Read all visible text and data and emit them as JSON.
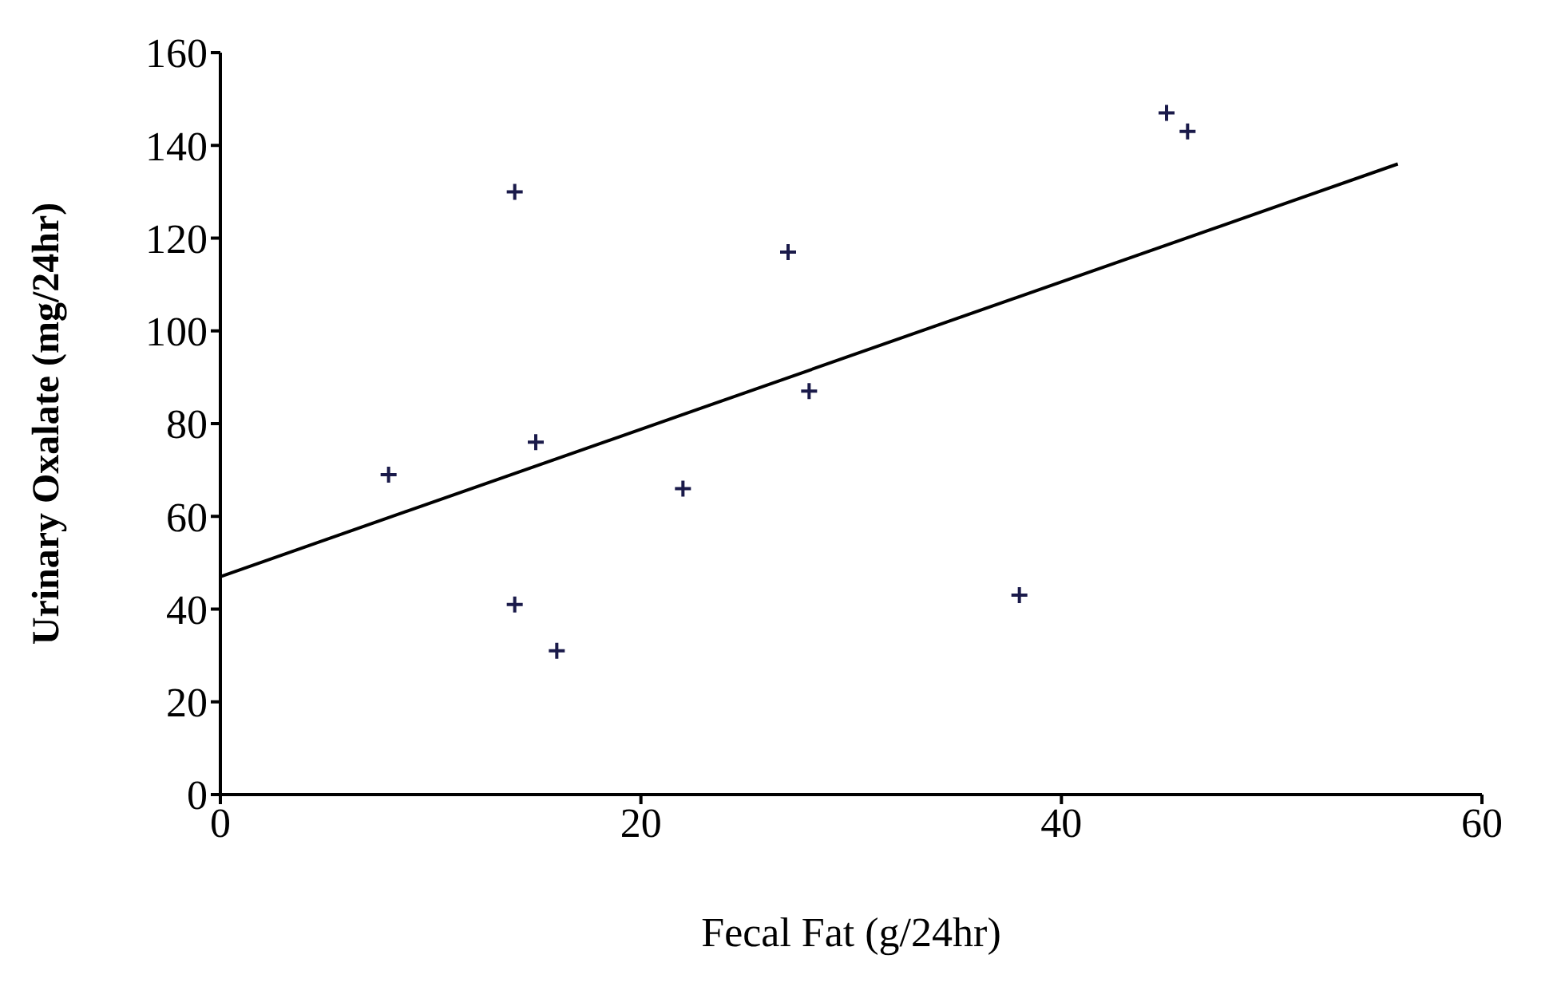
{
  "chart_data": {
    "type": "scatter",
    "xlabel": "Fecal Fat (g/24hr)",
    "ylabel": "Urinary Oxalate (mg/24hr)",
    "xlim": [
      0,
      60
    ],
    "xticks": [
      0,
      20,
      40,
      60
    ],
    "ylim": [
      0,
      160
    ],
    "yticks": [
      0,
      20,
      40,
      60,
      80,
      100,
      120,
      140,
      160
    ],
    "grid": false,
    "legend": false,
    "marker": "cross",
    "series": [
      {
        "color": "#1a1a4a",
        "x": [
          8,
          14,
          15,
          14,
          16,
          22,
          27,
          28,
          38,
          45,
          46
        ],
        "values": [
          69,
          130,
          76,
          41,
          31,
          66,
          117,
          87,
          43,
          147,
          143
        ]
      },
      {
        "type": "line",
        "color": "#000000",
        "marker": "none",
        "x": [
          0,
          56
        ],
        "values": [
          47,
          136
        ]
      }
    ]
  }
}
